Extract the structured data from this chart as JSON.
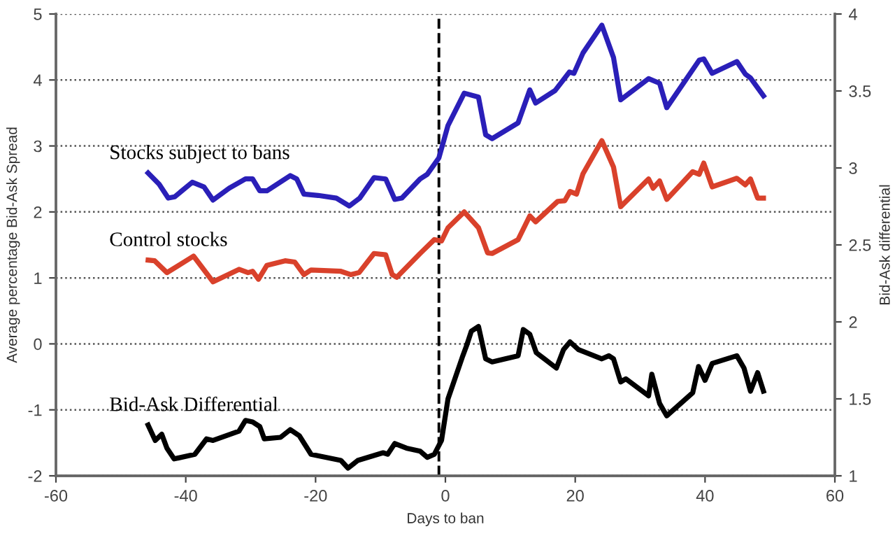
{
  "chart_data": {
    "type": "line",
    "xlabel": "Days to ban",
    "ylabel": "Average percentage Bid-Ask Spread",
    "y2label": "Bid-Ask differential",
    "xlim": [
      -60,
      60
    ],
    "xticks": [
      -60,
      -40,
      -20,
      0,
      20,
      40,
      60
    ],
    "ylim": [
      -2,
      5
    ],
    "yticks": [
      -2,
      -1,
      0,
      1,
      2,
      3,
      4,
      5
    ],
    "y2lim": [
      1,
      4
    ],
    "y2ticks": [
      1,
      1.5,
      2,
      2.5,
      3,
      3.5,
      4
    ],
    "grid": "y",
    "legend": false,
    "marker": "none",
    "line_style": "solid",
    "ref_lines": [
      {
        "axis": "x",
        "value": -1,
        "color": "#000000",
        "line_style": "dashed"
      }
    ],
    "series": [
      {
        "name": "Stocks subject to bans",
        "color": "#2a1fb8",
        "x": [
          -45.8,
          -44.1,
          -42.7,
          -41.7,
          -39.0,
          -37.2,
          -35.8,
          -33.3,
          -30.8,
          -29.7,
          -28.6,
          -27.5,
          -23.9,
          -22.9,
          -21.8,
          -19.6,
          -16.8,
          -14.8,
          -13.2,
          -11.0,
          -9.2,
          -7.8,
          -6.7,
          -3.9,
          -2.8,
          -1.0,
          0.4,
          2.9,
          5.1,
          6.2,
          7.2,
          11.2,
          13.0,
          13.9,
          16.9,
          19.1,
          19.8,
          21.2,
          24.1,
          25.9,
          27.0,
          31.3,
          33.0,
          34.1,
          39.1,
          39.8,
          41.1,
          44.9,
          46.2,
          47.0,
          49.0
        ],
        "values": [
          2.59,
          2.42,
          2.21,
          2.23,
          2.45,
          2.38,
          2.18,
          2.36,
          2.5,
          2.5,
          2.32,
          2.32,
          2.55,
          2.5,
          2.27,
          2.25,
          2.21,
          2.09,
          2.21,
          2.52,
          2.5,
          2.19,
          2.21,
          2.5,
          2.57,
          2.82,
          3.31,
          3.8,
          3.74,
          3.17,
          3.11,
          3.35,
          3.85,
          3.65,
          3.84,
          4.12,
          4.1,
          4.41,
          4.83,
          4.34,
          3.7,
          4.02,
          3.95,
          3.58,
          4.3,
          4.32,
          4.1,
          4.28,
          4.09,
          4.03,
          3.76
        ]
      },
      {
        "name": "Control stocks",
        "color": "#d9412b",
        "x": [
          -45.8,
          -44.8,
          -42.9,
          -38.8,
          -35.8,
          -31.8,
          -30.4,
          -29.7,
          -28.8,
          -27.5,
          -24.7,
          -23.2,
          -21.8,
          -20.7,
          -16.1,
          -14.6,
          -13.3,
          -11.0,
          -9.2,
          -8.2,
          -7.5,
          -3.9,
          -1.7,
          -0.6,
          0.4,
          2.9,
          5.1,
          6.5,
          7.2,
          11.2,
          13.0,
          13.9,
          17.3,
          18.4,
          19.2,
          20.2,
          21.2,
          24.1,
          25.9,
          27.0,
          31.3,
          32.0,
          33.0,
          34.1,
          38.1,
          39.1,
          39.8,
          41.1,
          44.9,
          46.2,
          47.0,
          48.1,
          49.0
        ],
        "values": [
          1.27,
          1.26,
          1.08,
          1.33,
          0.94,
          1.13,
          1.08,
          1.1,
          0.98,
          1.19,
          1.26,
          1.24,
          1.05,
          1.12,
          1.1,
          1.05,
          1.08,
          1.37,
          1.35,
          1.05,
          1.01,
          1.37,
          1.58,
          1.56,
          1.76,
          2.0,
          1.76,
          1.38,
          1.37,
          1.58,
          1.94,
          1.85,
          2.16,
          2.17,
          2.31,
          2.27,
          2.58,
          3.08,
          2.68,
          2.08,
          2.5,
          2.36,
          2.47,
          2.19,
          2.61,
          2.57,
          2.74,
          2.38,
          2.51,
          2.41,
          2.5,
          2.21,
          2.21
        ]
      },
      {
        "name": "Bid-Ask Differential",
        "color": "#000000",
        "axis": "y2",
        "x": [
          -45.8,
          -44.7,
          -43.7,
          -42.9,
          -41.8,
          -38.6,
          -36.8,
          -35.8,
          -31.8,
          -30.8,
          -29.7,
          -28.6,
          -27.9,
          -25.4,
          -23.9,
          -22.5,
          -20.7,
          -16.1,
          -15.0,
          -13.5,
          -9.6,
          -8.9,
          -7.8,
          -6.0,
          -3.9,
          -2.8,
          -1.7,
          -0.6,
          0.4,
          2.6,
          3.3,
          4.0,
          5.1,
          6.2,
          7.2,
          11.2,
          12.0,
          13.0,
          14.0,
          17.1,
          18.2,
          19.2,
          20.5,
          24.1,
          25.2,
          25.9,
          27.0,
          27.8,
          31.3,
          31.8,
          33.0,
          34.1,
          38.1,
          39.0,
          40.0,
          41.1,
          44.9,
          46.0,
          47.0,
          48.1,
          49.0
        ],
        "values": [
          1.33,
          1.23,
          1.27,
          1.18,
          1.11,
          1.14,
          1.24,
          1.23,
          1.29,
          1.36,
          1.35,
          1.32,
          1.24,
          1.25,
          1.3,
          1.26,
          1.14,
          1.1,
          1.05,
          1.1,
          1.15,
          1.14,
          1.21,
          1.18,
          1.16,
          1.12,
          1.14,
          1.23,
          1.5,
          1.77,
          1.85,
          1.94,
          1.97,
          1.76,
          1.74,
          1.78,
          1.95,
          1.92,
          1.8,
          1.7,
          1.82,
          1.87,
          1.82,
          1.76,
          1.78,
          1.76,
          1.61,
          1.63,
          1.52,
          1.66,
          1.47,
          1.39,
          1.54,
          1.71,
          1.62,
          1.73,
          1.78,
          1.7,
          1.55,
          1.67,
          1.55
        ]
      }
    ]
  }
}
